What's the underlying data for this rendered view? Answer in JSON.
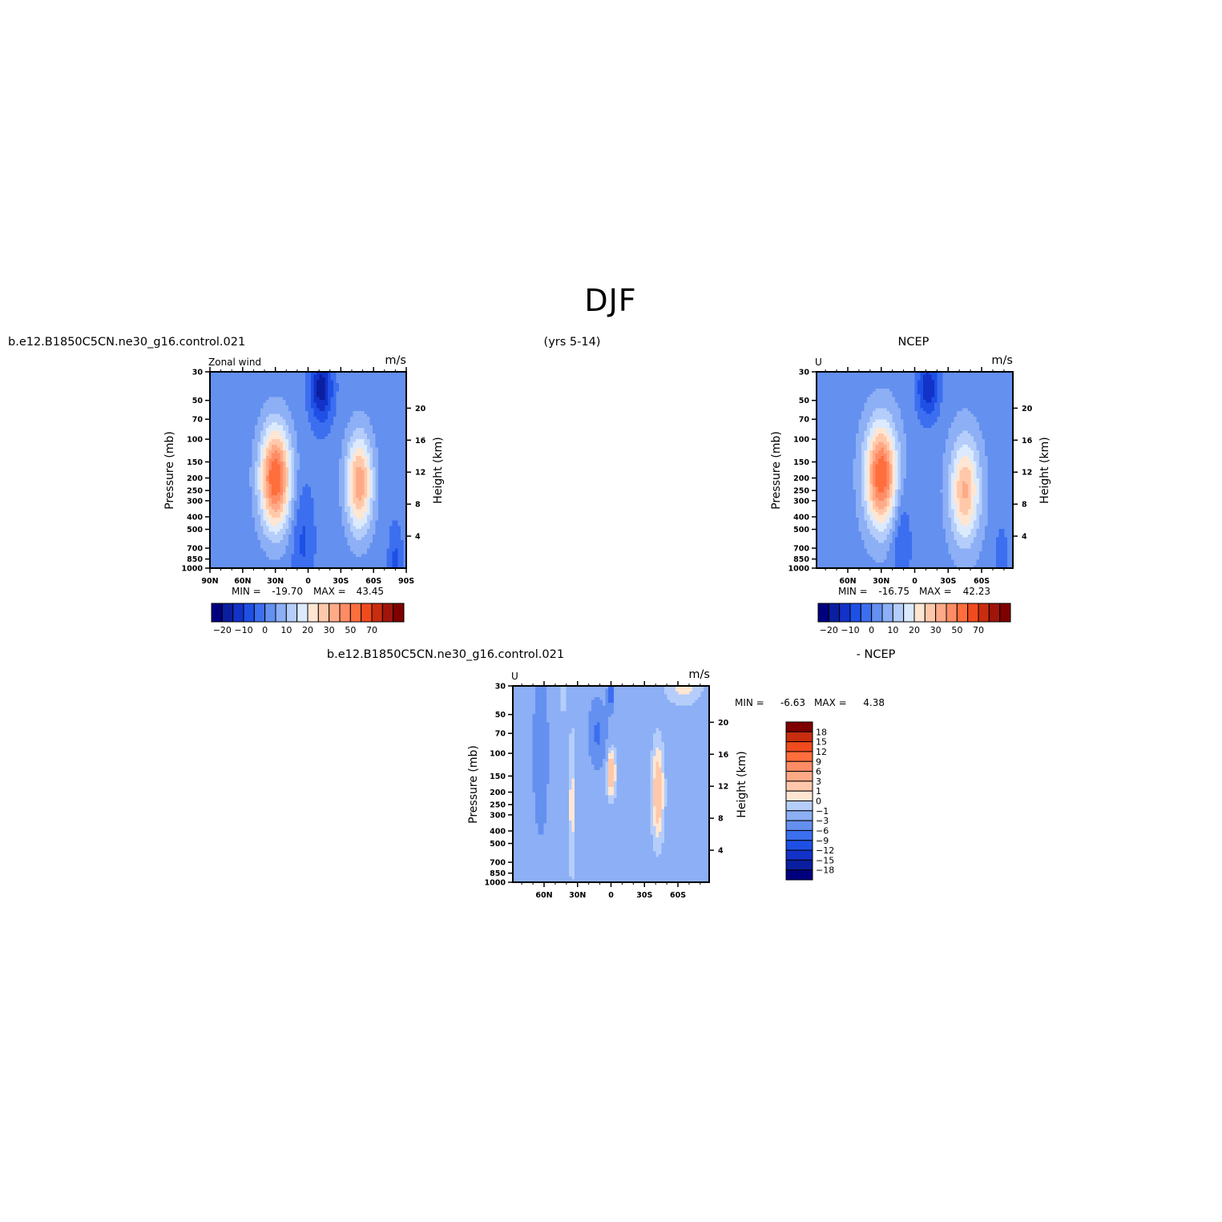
{
  "figure_title": "DJF",
  "panels_header": {
    "left": "b.e12.B1850C5CN.ne30_g16.control.021",
    "center": "(yrs 5-14)",
    "right": "NCEP"
  },
  "diff_header": {
    "left": "b.e12.B1850C5CN.ne30_g16.control.021",
    "right": "- NCEP"
  },
  "panel_colors": [
    "#00007f",
    "#0a1ea0",
    "#1232c8",
    "#1e50e6",
    "#3c6ef0",
    "#6490f0",
    "#8caff5",
    "#b4cdfa",
    "#dceafd",
    "#ffe6d2",
    "#ffc8aa",
    "#ffaa87",
    "#ff8c64",
    "#ff6e3c",
    "#f04b1e",
    "#c82d0f",
    "#a0140a",
    "#7f0000"
  ],
  "chart_data": [
    {
      "type": "heatmap",
      "label_left": "Zonal wind",
      "units": "m/s",
      "xlabel": "",
      "ylabel": "Pressure (mb)",
      "ylabel_right": "Height (km)",
      "x_ticks": [
        "90N",
        "60N",
        "30N",
        "0",
        "30S",
        "60S",
        "90S"
      ],
      "x_tick_values": [
        90,
        60,
        30,
        0,
        -30,
        -60,
        -90
      ],
      "xlim": [
        90,
        -90
      ],
      "y_ticks": [
        30,
        50,
        70,
        100,
        150,
        200,
        250,
        300,
        400,
        500,
        700,
        850,
        1000
      ],
      "ylim": [
        30,
        1000
      ],
      "y_scale": "log",
      "height_ticks": [
        4,
        8,
        12,
        16,
        20
      ],
      "min_label": "MIN =",
      "min_value": "-19.70",
      "max_label": "MAX =",
      "max_value": "43.45",
      "colorbar_orientation": "horizontal",
      "colorbar_labels": [
        "-20",
        "-10",
        "0",
        "10",
        "20",
        "30",
        "50",
        "70"
      ],
      "field": {
        "background": 2,
        "jets": [
          {
            "lat": 30,
            "p": 200,
            "peak": 43.45,
            "lat_width": 14,
            "logp_width": 0.9
          },
          {
            "lat": -47,
            "p": 220,
            "peak": 32,
            "lat_width": 12,
            "logp_width": 0.85
          }
        ],
        "negatives": [
          {
            "lat": -12,
            "p": 40,
            "peak": -19.7,
            "lat_width": 10,
            "logp_width": 0.6
          },
          {
            "lat": 5,
            "p": 600,
            "peak": -8,
            "lat_width": 10,
            "logp_width": 1.0
          },
          {
            "lat": -80,
            "p": 850,
            "peak": -8,
            "lat_width": 6,
            "logp_width": 0.6
          }
        ]
      }
    },
    {
      "type": "heatmap",
      "label_left": "U",
      "units": "m/s",
      "xlabel": "",
      "ylabel": "Pressure (mb)",
      "ylabel_right": "Height (km)",
      "x_ticks": [
        "60N",
        "30N",
        "0",
        "30S",
        "60S"
      ],
      "x_tick_values": [
        60,
        30,
        0,
        -30,
        -60
      ],
      "xlim": [
        88,
        -88
      ],
      "y_ticks": [
        30,
        50,
        70,
        100,
        150,
        200,
        250,
        300,
        400,
        500,
        700,
        850,
        1000
      ],
      "ylim": [
        30,
        1000
      ],
      "y_scale": "log",
      "height_ticks": [
        4,
        8,
        12,
        16,
        20
      ],
      "min_label": "MIN =",
      "min_value": "-16.75",
      "max_label": "MAX =",
      "max_value": "42.23",
      "colorbar_orientation": "horizontal",
      "colorbar_labels": [
        "-20",
        "-10",
        "0",
        "10",
        "20",
        "30",
        "50",
        "70"
      ],
      "field": {
        "background": 3,
        "jets": [
          {
            "lat": 30,
            "p": 190,
            "peak": 42.23,
            "lat_width": 14,
            "logp_width": 0.9
          },
          {
            "lat": -45,
            "p": 250,
            "peak": 28,
            "lat_width": 13,
            "logp_width": 0.9
          }
        ],
        "negatives": [
          {
            "lat": -12,
            "p": 40,
            "peak": -16.75,
            "lat_width": 10,
            "logp_width": 0.55
          },
          {
            "lat": 12,
            "p": 600,
            "peak": -8,
            "lat_width": 9,
            "logp_width": 1.0
          },
          {
            "lat": -78,
            "p": 800,
            "peak": -6,
            "lat_width": 6,
            "logp_width": 0.6
          }
        ]
      }
    },
    {
      "type": "heatmap",
      "label_left": "U",
      "units": "m/s",
      "xlabel": "",
      "ylabel": "Pressure (mb)",
      "ylabel_right": "Height (km)",
      "x_ticks": [
        "60N",
        "30N",
        "0",
        "30S",
        "60S"
      ],
      "x_tick_values": [
        60,
        30,
        0,
        -30,
        -60
      ],
      "xlim": [
        88,
        -88
      ],
      "y_ticks": [
        30,
        50,
        70,
        100,
        150,
        200,
        250,
        300,
        400,
        500,
        700,
        850,
        1000
      ],
      "ylim": [
        30,
        1000
      ],
      "y_scale": "log",
      "height_ticks": [
        4,
        8,
        12,
        16,
        20
      ],
      "min_label": "MIN =",
      "min_value": "-6.63",
      "max_label": "MAX =",
      "max_value": "4.38",
      "colorbar_orientation": "vertical",
      "colorbar_labels": [
        "18",
        "15",
        "12",
        "9",
        "6",
        "3",
        "1",
        "0",
        "-1",
        "-3",
        "-6",
        "-9",
        "-12",
        "-15",
        "-18"
      ],
      "field": {
        "background": -1.5,
        "jets": [
          {
            "lat": 0,
            "p": 140,
            "peak": 4.38,
            "lat_width": 4,
            "logp_width": 0.4
          },
          {
            "lat": -42,
            "p": 200,
            "peak": 4,
            "lat_width": 5,
            "logp_width": 0.8
          },
          {
            "lat": 35,
            "p": 250,
            "peak": 2,
            "lat_width": 3,
            "logp_width": 1.2
          },
          {
            "lat": 43,
            "p": 35,
            "peak": 1.5,
            "lat_width": 3,
            "logp_width": 0.3
          },
          {
            "lat": -65,
            "p": 30,
            "peak": 2,
            "lat_width": 15,
            "logp_width": 0.3
          }
        ],
        "negatives": [
          {
            "lat": 63,
            "p": 100,
            "peak": -4,
            "lat_width": 7,
            "logp_width": 1.5
          },
          {
            "lat": 12,
            "p": 70,
            "peak": -5,
            "lat_width": 8,
            "logp_width": 0.6
          },
          {
            "lat": 0,
            "p": 35,
            "peak": -6.63,
            "lat_width": 3,
            "logp_width": 0.3
          }
        ]
      }
    }
  ]
}
